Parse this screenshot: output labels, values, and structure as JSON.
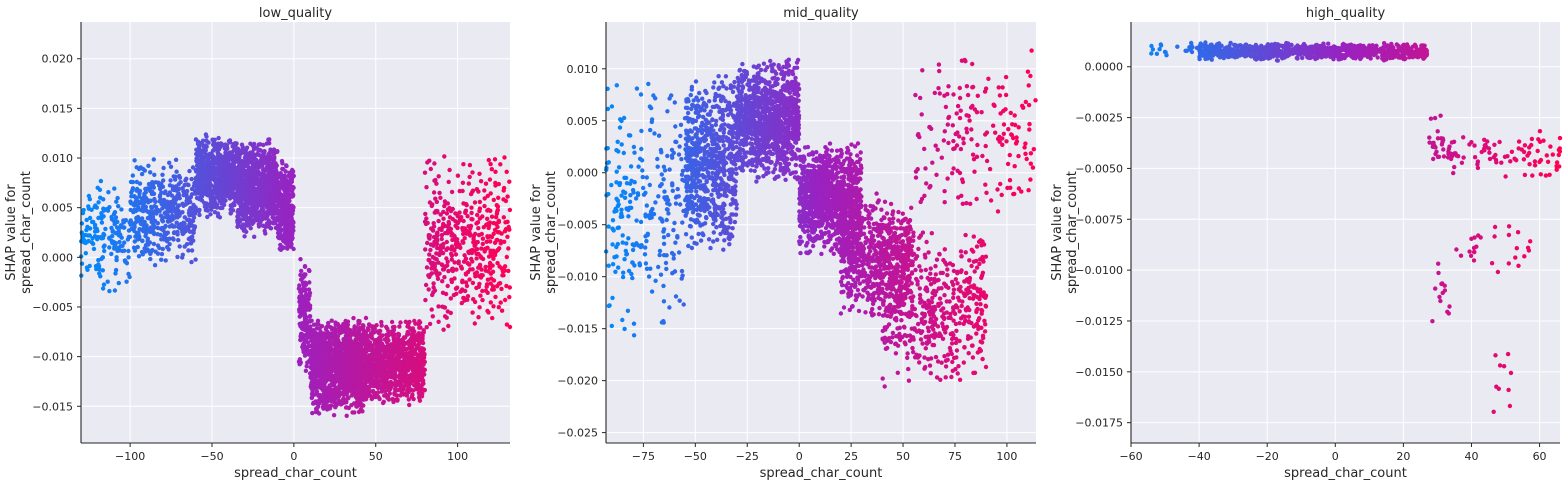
{
  "chart_data": [
    {
      "type": "scatter",
      "title": "low_quality",
      "xlabel": "spread_char_count",
      "ylabel_lines": [
        "SHAP value for",
        "spread_char_count"
      ],
      "xlim": [
        -130,
        132
      ],
      "ylim": [
        -0.0187,
        0.0237
      ],
      "xticks": [
        -100,
        -50,
        0,
        50,
        100
      ],
      "xtick_labels": [
        "−100",
        "−50",
        "0",
        "50",
        "100"
      ],
      "yticks": [
        -0.015,
        -0.01,
        -0.005,
        0.0,
        0.005,
        0.01,
        0.015,
        0.02
      ],
      "ytick_labels": [
        "−0.015",
        "−0.010",
        "−0.005",
        "0.000",
        "0.005",
        "0.010",
        "0.015",
        "0.020"
      ],
      "grid": true,
      "color_scale": {
        "low": "#008afb",
        "mid": "#9b21c0",
        "high": "#ff0052"
      },
      "clusters": [
        {
          "x": [
            -130,
            -100
          ],
          "y": [
            -0.004,
            0.008
          ],
          "n": 170
        },
        {
          "x": [
            -100,
            -60
          ],
          "y": [
            -0.001,
            0.01
          ],
          "n": 450
        },
        {
          "x": [
            -60,
            -35
          ],
          "y": [
            0.004,
            0.0125
          ],
          "n": 700
        },
        {
          "x": [
            -35,
            -10
          ],
          "y": [
            0.002,
            0.012
          ],
          "n": 900
        },
        {
          "x": [
            -10,
            0
          ],
          "y": [
            0.0,
            0.01
          ],
          "n": 300
        },
        {
          "x": [
            3,
            10
          ],
          "y": [
            -0.012,
            0.0
          ],
          "n": 180
        },
        {
          "x": [
            10,
            45
          ],
          "y": [
            -0.016,
            -0.006
          ],
          "n": 1400
        },
        {
          "x": [
            45,
            80
          ],
          "y": [
            -0.015,
            -0.006
          ],
          "n": 900
        },
        {
          "x": [
            80,
            132
          ],
          "y": [
            -0.008,
            0.011
          ],
          "n": 500
        }
      ]
    },
    {
      "type": "scatter",
      "title": "mid_quality",
      "xlabel": "spread_char_count",
      "ylabel_lines": [
        "SHAP value for",
        "spread_char_count"
      ],
      "xlim": [
        -93,
        114
      ],
      "ylim": [
        -0.026,
        0.0145
      ],
      "xticks": [
        -75,
        -50,
        -25,
        0,
        25,
        50,
        75,
        100
      ],
      "xtick_labels": [
        "−75",
        "−50",
        "−25",
        "0",
        "25",
        "50",
        "75",
        "100"
      ],
      "yticks": [
        -0.025,
        -0.02,
        -0.015,
        -0.01,
        -0.005,
        0.0,
        0.005,
        0.01
      ],
      "ytick_labels": [
        "−0.025",
        "−0.020",
        "−0.015",
        "−0.010",
        "−0.005",
        "0.000",
        "0.005",
        "0.010"
      ],
      "grid": true,
      "color_scale": {
        "low": "#008afb",
        "mid": "#9b21c0",
        "high": "#ff0052"
      },
      "clusters": [
        {
          "x": [
            -93,
            -55
          ],
          "y": [
            -0.017,
            0.01
          ],
          "n": 260
        },
        {
          "x": [
            -55,
            -30
          ],
          "y": [
            -0.008,
            0.01
          ],
          "n": 700
        },
        {
          "x": [
            -30,
            0
          ],
          "y": [
            -0.001,
            0.011
          ],
          "n": 1100
        },
        {
          "x": [
            0,
            30
          ],
          "y": [
            -0.008,
            0.003
          ],
          "n": 1100
        },
        {
          "x": [
            20,
            55
          ],
          "y": [
            -0.014,
            -0.002
          ],
          "n": 700
        },
        {
          "x": [
            40,
            90
          ],
          "y": [
            -0.021,
            -0.005
          ],
          "n": 500
        },
        {
          "x": [
            55,
            114
          ],
          "y": [
            -0.005,
            0.012
          ],
          "n": 180
        }
      ]
    },
    {
      "type": "scatter",
      "title": "high_quality",
      "xlabel": "spread_char_count",
      "ylabel_lines": [
        "SHAP value for",
        "spread_char_count"
      ],
      "xlim": [
        -60,
        66
      ],
      "ylim": [
        -0.0185,
        0.0022
      ],
      "xticks": [
        -60,
        -40,
        -20,
        0,
        20,
        40,
        60
      ],
      "xtick_labels": [
        "−60",
        "−40",
        "−20",
        "0",
        "20",
        "40",
        "60"
      ],
      "yticks": [
        -0.0175,
        -0.015,
        -0.0125,
        -0.01,
        -0.0075,
        -0.005,
        -0.0025,
        0.0
      ],
      "ytick_labels": [
        "−0.0175",
        "−0.0150",
        "−0.0125",
        "−0.0100",
        "−0.0075",
        "−0.0050",
        "−0.0025",
        "0.0000"
      ],
      "grid": true,
      "color_scale": {
        "low": "#008afb",
        "mid": "#9b21c0",
        "high": "#ff0052"
      },
      "clusters": [
        {
          "x": [
            -60,
            -40
          ],
          "y": [
            0.0004,
            0.0012
          ],
          "n": 20
        },
        {
          "x": [
            -40,
            27
          ],
          "y": [
            0.0003,
            0.0012
          ],
          "n": 900
        },
        {
          "x": [
            27,
            32
          ],
          "y": [
            -0.0055,
            -0.0018
          ],
          "n": 25
        },
        {
          "x": [
            28,
            34
          ],
          "y": [
            -0.013,
            -0.0095
          ],
          "n": 14
        },
        {
          "x": [
            32,
            66
          ],
          "y": [
            -0.0055,
            -0.003
          ],
          "n": 90
        },
        {
          "x": [
            35,
            58
          ],
          "y": [
            -0.0105,
            -0.0075
          ],
          "n": 28
        },
        {
          "x": [
            46,
            52
          ],
          "y": [
            -0.0176,
            -0.0126
          ],
          "n": 10
        }
      ]
    }
  ]
}
